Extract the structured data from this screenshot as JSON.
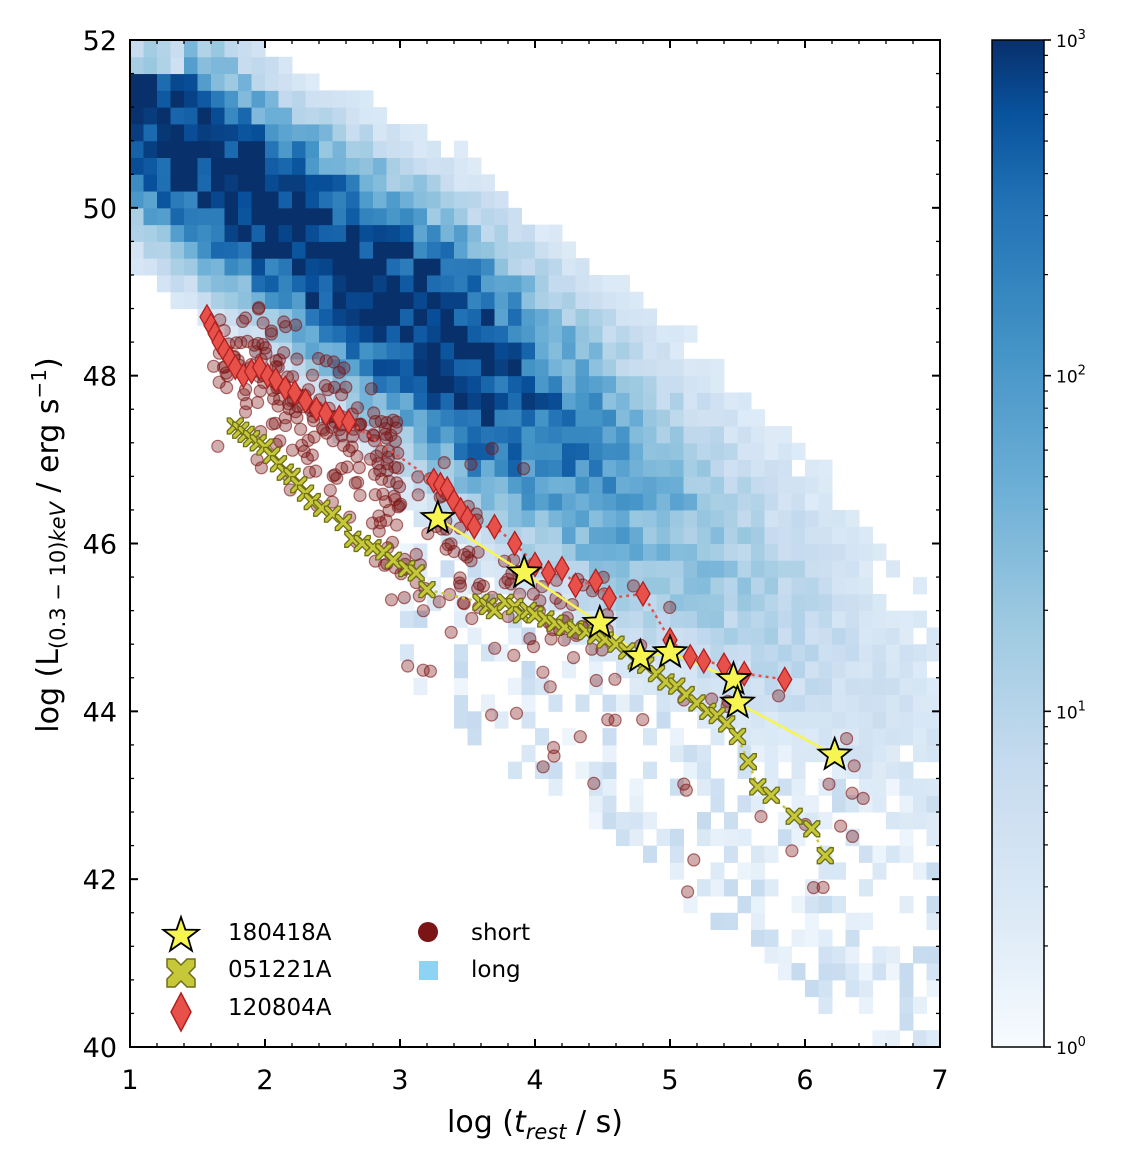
{
  "chart_data": {
    "type": "scatter",
    "xlabel": {
      "pre": "log (",
      "italic": "t",
      "sub": "rest",
      "post": " / s)"
    },
    "ylabel": {
      "pre": "log (L",
      "sub": "(0.3 − 10)",
      "subitalic": "keV",
      "post": " / erg s",
      "sup": "−1",
      "end": ")"
    },
    "xlim": [
      1,
      7
    ],
    "ylim": [
      40,
      52
    ],
    "xticks": [
      "1",
      "2",
      "3",
      "4",
      "5",
      "6",
      "7"
    ],
    "yticks": [
      "40",
      "42",
      "44",
      "46",
      "48",
      "50",
      "52"
    ],
    "colorbar": {
      "scale": "log",
      "range": [
        1,
        1000
      ],
      "ticks": [
        {
          "base": "10",
          "exp": "0",
          "value": 1
        },
        {
          "base": "10",
          "exp": "1",
          "value": 10
        },
        {
          "base": "10",
          "exp": "2",
          "value": 100
        },
        {
          "base": "10",
          "exp": "3",
          "value": 1000
        }
      ],
      "color_low": "#f7fbff",
      "color_high": "#08306b"
    },
    "legend": {
      "placement": "lower-left",
      "entries": [
        {
          "label": "180418A",
          "marker": "star",
          "color": "#f7f552"
        },
        {
          "label": "051221A",
          "marker": "x",
          "color": "#c6c83a"
        },
        {
          "label": "120804A",
          "marker": "diamond",
          "color": "#e8504a"
        },
        {
          "label": "short",
          "marker": "circle",
          "color": "#7b1414"
        },
        {
          "label": "long",
          "marker": "square",
          "color": "#8fd3f4"
        }
      ]
    },
    "series": [
      {
        "name": "180418A",
        "marker": "star",
        "color": "#f7f552",
        "line": "solid",
        "x": [
          3.28,
          3.92,
          4.48,
          4.78,
          5.0,
          5.47,
          5.5,
          6.22
        ],
        "y": [
          46.3,
          45.65,
          45.05,
          44.65,
          44.7,
          44.38,
          44.1,
          43.48
        ]
      },
      {
        "name": "051221A",
        "marker": "x",
        "color": "#c6c83a",
        "line": "dotted",
        "x": [
          1.78,
          1.82,
          1.86,
          1.9,
          1.95,
          2.0,
          2.05,
          2.1,
          2.15,
          2.2,
          2.25,
          2.3,
          2.35,
          2.42,
          2.5,
          2.58,
          2.65,
          2.72,
          2.8,
          2.88,
          2.95,
          3.05,
          3.12,
          3.2,
          3.6,
          3.65,
          3.7,
          3.78,
          3.85,
          3.9,
          3.95,
          4.0,
          4.08,
          4.15,
          4.22,
          4.3,
          4.38,
          4.45,
          4.52,
          4.6,
          4.68,
          4.75,
          4.82,
          4.9,
          4.97,
          5.05,
          5.12,
          5.2,
          5.28,
          5.35,
          5.42,
          5.5,
          5.58,
          5.65,
          5.75,
          5.92,
          6.05,
          6.15
        ],
        "y": [
          47.4,
          47.35,
          47.3,
          47.25,
          47.2,
          47.15,
          47.05,
          46.95,
          46.85,
          46.8,
          46.7,
          46.6,
          46.5,
          46.42,
          46.35,
          46.25,
          46.05,
          46.0,
          45.95,
          45.9,
          45.8,
          45.7,
          45.65,
          45.45,
          45.3,
          45.25,
          45.2,
          45.3,
          45.25,
          45.15,
          45.2,
          45.15,
          45.1,
          45.05,
          45.0,
          44.98,
          44.95,
          44.9,
          44.85,
          44.8,
          44.72,
          44.6,
          44.55,
          44.45,
          44.35,
          44.3,
          44.2,
          44.1,
          44.0,
          43.95,
          43.85,
          43.7,
          43.4,
          43.1,
          43.0,
          42.75,
          42.6,
          42.28
        ]
      },
      {
        "name": "120804A",
        "marker": "diamond",
        "color": "#e8504a",
        "line": "dotted",
        "x": [
          1.57,
          1.6,
          1.63,
          1.66,
          1.7,
          1.74,
          1.78,
          1.84,
          1.9,
          1.96,
          2.02,
          2.08,
          2.15,
          2.22,
          2.3,
          2.38,
          2.45,
          2.55,
          2.62,
          3.25,
          3.3,
          3.35,
          3.4,
          3.45,
          3.5,
          3.55,
          3.7,
          3.85,
          4.0,
          4.1,
          4.2,
          4.3,
          4.45,
          4.55,
          4.8,
          5.0,
          5.15,
          5.25,
          5.4,
          5.55,
          5.85
        ],
        "y": [
          48.7,
          48.6,
          48.5,
          48.4,
          48.3,
          48.2,
          48.1,
          48.0,
          48.05,
          48.1,
          48.0,
          47.95,
          47.85,
          47.8,
          47.7,
          47.6,
          47.55,
          47.5,
          47.45,
          46.75,
          46.7,
          46.65,
          46.5,
          46.4,
          46.3,
          46.2,
          46.2,
          46.0,
          45.75,
          45.65,
          45.7,
          45.5,
          45.55,
          45.35,
          45.4,
          44.85,
          44.65,
          44.6,
          44.55,
          44.45,
          44.38
        ]
      },
      {
        "name": "short",
        "marker": "circle",
        "color": "#7b1414",
        "note": "several hundred light-curve points"
      },
      {
        "name": "long",
        "marker": "square",
        "color": "#3a7fc1",
        "note": "2D histogram density of long GRB afterglows"
      }
    ]
  }
}
